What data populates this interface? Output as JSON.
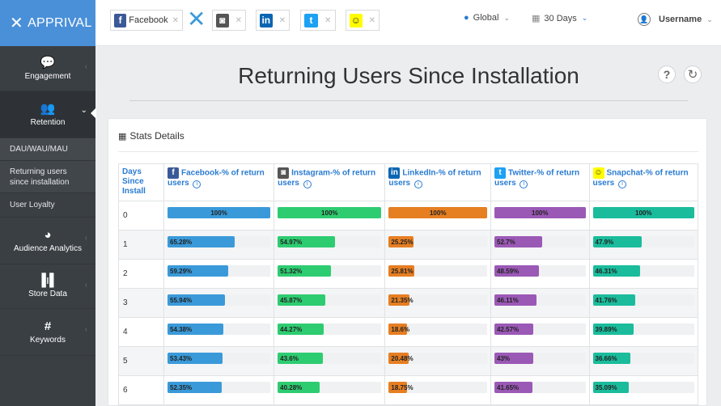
{
  "app": {
    "name": "APPRIVAL"
  },
  "sidebar": {
    "items": [
      {
        "label": "Engagement"
      },
      {
        "label": "Retention"
      },
      {
        "label": "Audience Analytics"
      },
      {
        "label": "Store Data"
      },
      {
        "label": "Keywords"
      }
    ],
    "subitems": [
      {
        "label": "DAU/WAU/MAU"
      },
      {
        "label": "Returning users since installation"
      },
      {
        "label": "User Loyalty"
      }
    ]
  },
  "header": {
    "platforms": [
      {
        "label": "Facebook"
      }
    ],
    "region": "Global",
    "period": "30 Days",
    "username": "Username"
  },
  "page": {
    "title": "Returning Users Since Installation"
  },
  "stats": {
    "title": "Stats Details",
    "day_header": "Days Since Install",
    "columns": [
      {
        "label": "Facebook-% of return users",
        "color": "#3a9ad9"
      },
      {
        "label": "Instagram-% of return users",
        "color": "#2ecc71"
      },
      {
        "label": "LinkedIn-% of return users",
        "color": "#e67e22"
      },
      {
        "label": "Twitter-% of return users",
        "color": "#9b59b6"
      },
      {
        "label": "Snapchat-% of return users",
        "color": "#1abc9c"
      }
    ],
    "rows": [
      {
        "day": "0",
        "values": [
          "100%",
          "100%",
          "100%",
          "100%",
          "100%"
        ],
        "pct": [
          100,
          100,
          100,
          100,
          100
        ]
      },
      {
        "day": "1",
        "values": [
          "65.28%",
          "54.97%",
          "25.25%",
          "52.7%",
          "47.9%"
        ],
        "pct": [
          65.28,
          54.97,
          25.25,
          52.7,
          47.9
        ]
      },
      {
        "day": "2",
        "values": [
          "59.29%",
          "51.32%",
          "25.81%",
          "48.59%",
          "46.31%"
        ],
        "pct": [
          59.29,
          51.32,
          25.81,
          48.59,
          46.31
        ]
      },
      {
        "day": "3",
        "values": [
          "55.94%",
          "45.87%",
          "21.35%",
          "46.11%",
          "41.76%"
        ],
        "pct": [
          55.94,
          45.87,
          21.35,
          46.11,
          41.76
        ]
      },
      {
        "day": "4",
        "values": [
          "54.38%",
          "44.27%",
          "18.6%",
          "42.57%",
          "39.89%"
        ],
        "pct": [
          54.38,
          44.27,
          18.6,
          42.57,
          39.89
        ]
      },
      {
        "day": "5",
        "values": [
          "53.43%",
          "43.6%",
          "20.48%",
          "43%",
          "36.66%"
        ],
        "pct": [
          53.43,
          43.6,
          20.48,
          43,
          36.66
        ]
      },
      {
        "day": "6",
        "values": [
          "52.35%",
          "40.28%",
          "18.75%",
          "41.65%",
          "35.09%"
        ],
        "pct": [
          52.35,
          40.28,
          18.75,
          41.65,
          35.09
        ]
      }
    ]
  }
}
